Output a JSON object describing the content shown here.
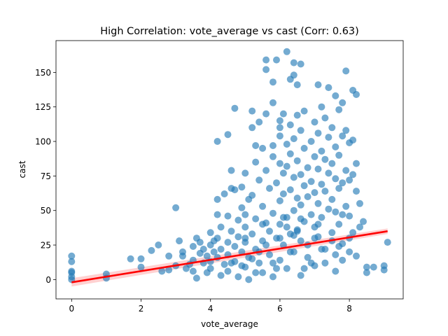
{
  "chart_data": {
    "type": "scatter",
    "title": "High Correlation: vote_average vs cast (Corr: 0.63)",
    "xlabel": "vote_average",
    "ylabel": "cast",
    "xlim": [
      -0.45,
      9.55
    ],
    "ylim": [
      -14,
      173
    ],
    "xticks": [
      "0",
      "2",
      "4",
      "6",
      "8"
    ],
    "yticks": [
      "0",
      "25",
      "50",
      "75",
      "100",
      "125",
      "150"
    ],
    "grid": false,
    "point_color": "#1f77b4",
    "line_color": "#ff0000",
    "regression_line": {
      "x": [
        0,
        9.1
      ],
      "y": [
        -2,
        35
      ]
    },
    "confidence_band_color": "#ff9999",
    "series": [
      {
        "values": [
          [
            0,
            0
          ],
          [
            0,
            2
          ],
          [
            0,
            5
          ],
          [
            0,
            6
          ],
          [
            0,
            13
          ],
          [
            0,
            17
          ],
          [
            1,
            1
          ],
          [
            1,
            4
          ],
          [
            1.7,
            15
          ],
          [
            2,
            9
          ],
          [
            2,
            15
          ],
          [
            2.3,
            21
          ],
          [
            2.5,
            25
          ],
          [
            2.6,
            6
          ],
          [
            2.8,
            7
          ],
          [
            2.8,
            17
          ],
          [
            3,
            52
          ],
          [
            3,
            10
          ],
          [
            3.1,
            28
          ],
          [
            3.2,
            17
          ],
          [
            3.2,
            20
          ],
          [
            3.3,
            8
          ],
          [
            3.4,
            11
          ],
          [
            3.5,
            6
          ],
          [
            3.5,
            14
          ],
          [
            3.5,
            24
          ],
          [
            3.6,
            30
          ],
          [
            3.6,
            1
          ],
          [
            3.7,
            19
          ],
          [
            3.7,
            27
          ],
          [
            3.8,
            12
          ],
          [
            3.8,
            22
          ],
          [
            3.9,
            5
          ],
          [
            3.9,
            17
          ],
          [
            4,
            34
          ],
          [
            4,
            25
          ],
          [
            4,
            13
          ],
          [
            4,
            8
          ],
          [
            4.1,
            20
          ],
          [
            4.1,
            28
          ],
          [
            4.2,
            100
          ],
          [
            4.2,
            58
          ],
          [
            4.2,
            47
          ],
          [
            4.2,
            30
          ],
          [
            4.2,
            16
          ],
          [
            4.3,
            3
          ],
          [
            4.3,
            22
          ],
          [
            4.3,
            38
          ],
          [
            4.4,
            11
          ],
          [
            4.4,
            62
          ],
          [
            4.5,
            105
          ],
          [
            4.5,
            46
          ],
          [
            4.5,
            27
          ],
          [
            4.5,
            18
          ],
          [
            4.5,
            6
          ],
          [
            4.6,
            66
          ],
          [
            4.6,
            79
          ],
          [
            4.6,
            35
          ],
          [
            4.7,
            124
          ],
          [
            4.7,
            65
          ],
          [
            4.7,
            24
          ],
          [
            4.7,
            13
          ],
          [
            4.8,
            2
          ],
          [
            4.8,
            43
          ],
          [
            4.8,
            31
          ],
          [
            4.9,
            52
          ],
          [
            4.9,
            67
          ],
          [
            4.9,
            20
          ],
          [
            5,
            9
          ],
          [
            5,
            47
          ],
          [
            5,
            27
          ],
          [
            5,
            38
          ],
          [
            5,
            77
          ],
          [
            5.1,
            16
          ],
          [
            5.1,
            58
          ],
          [
            5.1,
            0
          ],
          [
            5.2,
            122
          ],
          [
            5.2,
            110
          ],
          [
            5.2,
            61
          ],
          [
            5.2,
            33
          ],
          [
            5.3,
            97
          ],
          [
            5.3,
            85
          ],
          [
            5.3,
            44
          ],
          [
            5.3,
            22
          ],
          [
            5.4,
            114
          ],
          [
            5.4,
            72
          ],
          [
            5.4,
            12
          ],
          [
            5.5,
            53
          ],
          [
            5.5,
            95
          ],
          [
            5.5,
            28
          ],
          [
            5.5,
            5
          ],
          [
            5.6,
            159
          ],
          [
            5.6,
            152
          ],
          [
            5.6,
            120
          ],
          [
            5.6,
            79
          ],
          [
            5.6,
            41
          ],
          [
            5.7,
            66
          ],
          [
            5.7,
            35
          ],
          [
            5.7,
            18
          ],
          [
            5.8,
            97
          ],
          [
            5.8,
            143
          ],
          [
            5.8,
            128
          ],
          [
            5.8,
            89
          ],
          [
            5.8,
            48
          ],
          [
            5.8,
            2
          ],
          [
            5.9,
            159
          ],
          [
            5.9,
            70
          ],
          [
            5.9,
            30
          ],
          [
            6,
            110
          ],
          [
            6,
            104
          ],
          [
            6,
            115
          ],
          [
            6,
            84
          ],
          [
            6,
            57
          ],
          [
            6,
            40
          ],
          [
            6,
            14
          ],
          [
            6.1,
            120
          ],
          [
            6.1,
            77
          ],
          [
            6.1,
            62
          ],
          [
            6.1,
            25
          ],
          [
            6.2,
            165
          ],
          [
            6.2,
            98
          ],
          [
            6.2,
            82
          ],
          [
            6.2,
            45
          ],
          [
            6.2,
            8
          ],
          [
            6.3,
            145
          ],
          [
            6.3,
            112
          ],
          [
            6.3,
            91
          ],
          [
            6.3,
            65
          ],
          [
            6.3,
            33
          ],
          [
            6.4,
            148
          ],
          [
            6.4,
            157
          ],
          [
            6.4,
            102
          ],
          [
            6.4,
            74
          ],
          [
            6.4,
            50
          ],
          [
            6.4,
            20
          ],
          [
            6.5,
            141
          ],
          [
            6.5,
            119
          ],
          [
            6.5,
            86
          ],
          [
            6.5,
            59
          ],
          [
            6.5,
            36
          ],
          [
            6.6,
            156
          ],
          [
            6.6,
            108
          ],
          [
            6.6,
            76
          ],
          [
            6.6,
            54
          ],
          [
            6.6,
            28
          ],
          [
            6.6,
            3
          ],
          [
            6.7,
            122
          ],
          [
            6.7,
            95
          ],
          [
            6.7,
            68
          ],
          [
            6.7,
            42
          ],
          [
            6.8,
            81
          ],
          [
            6.8,
            60
          ],
          [
            6.8,
            16
          ],
          [
            6.9,
            100
          ],
          [
            6.9,
            71
          ],
          [
            6.9,
            47
          ],
          [
            7,
            114
          ],
          [
            7,
            89
          ],
          [
            7,
            63
          ],
          [
            7,
            38
          ],
          [
            7,
            10
          ],
          [
            7.1,
            141
          ],
          [
            7.1,
            106
          ],
          [
            7.1,
            80
          ],
          [
            7.1,
            55
          ],
          [
            7.1,
            31
          ],
          [
            7.2,
            125
          ],
          [
            7.2,
            93
          ],
          [
            7.2,
            69
          ],
          [
            7.2,
            45
          ],
          [
            7.3,
            117
          ],
          [
            7.3,
            87
          ],
          [
            7.3,
            64
          ],
          [
            7.3,
            22
          ],
          [
            7.4,
            139
          ],
          [
            7.4,
            103
          ],
          [
            7.4,
            77
          ],
          [
            7.4,
            51
          ],
          [
            7.5,
            110
          ],
          [
            7.5,
            84
          ],
          [
            7.5,
            58
          ],
          [
            7.5,
            34
          ],
          [
            7.6,
            133
          ],
          [
            7.6,
            96
          ],
          [
            7.6,
            73
          ],
          [
            7.6,
            49
          ],
          [
            7.6,
            6
          ],
          [
            7.7,
            123
          ],
          [
            7.7,
            90
          ],
          [
            7.7,
            66
          ],
          [
            7.7,
            40
          ],
          [
            7.8,
            128
          ],
          [
            7.8,
            104
          ],
          [
            7.8,
            70
          ],
          [
            7.8,
            47
          ],
          [
            7.8,
            14
          ],
          [
            7.9,
            151
          ],
          [
            7.9,
            108
          ],
          [
            7.9,
            79
          ],
          [
            7.9,
            53
          ],
          [
            8,
            99
          ],
          [
            8,
            72
          ],
          [
            8,
            46
          ],
          [
            8,
            20
          ],
          [
            8.1,
            137
          ],
          [
            8.1,
            101
          ],
          [
            8.1,
            76
          ],
          [
            8.1,
            34
          ],
          [
            8.2,
            134
          ],
          [
            8.2,
            84
          ],
          [
            8.2,
            64
          ],
          [
            8.2,
            17
          ],
          [
            8.3,
            55
          ],
          [
            8.3,
            38
          ],
          [
            8.4,
            42
          ],
          [
            8.5,
            9
          ],
          [
            8.5,
            5
          ],
          [
            8.7,
            9
          ],
          [
            9,
            10
          ],
          [
            9,
            7
          ],
          [
            9.1,
            27
          ],
          [
            5,
            30
          ],
          [
            5.5,
            40
          ],
          [
            6,
            30
          ],
          [
            6.5,
            35
          ],
          [
            7,
            30
          ],
          [
            7.5,
            28
          ],
          [
            5.2,
            15
          ],
          [
            5.8,
            12
          ],
          [
            6.3,
            20
          ],
          [
            6.8,
            25
          ],
          [
            7.3,
            12
          ],
          [
            7.8,
            26
          ],
          [
            6.9,
            12
          ],
          [
            6.1,
            45
          ],
          [
            5.4,
            20
          ],
          [
            4.9,
            10
          ],
          [
            5.6,
            25
          ],
          [
            6.4,
            32
          ],
          [
            7.2,
            22
          ],
          [
            6.7,
            8
          ],
          [
            6.2,
            38
          ],
          [
            7.6,
            18
          ],
          [
            5.9,
            8
          ],
          [
            4.6,
            12
          ],
          [
            5.3,
            5
          ],
          [
            6.6,
            44
          ],
          [
            7.1,
            40
          ],
          [
            7.7,
            24
          ],
          [
            8,
            30
          ]
        ]
      }
    ]
  }
}
